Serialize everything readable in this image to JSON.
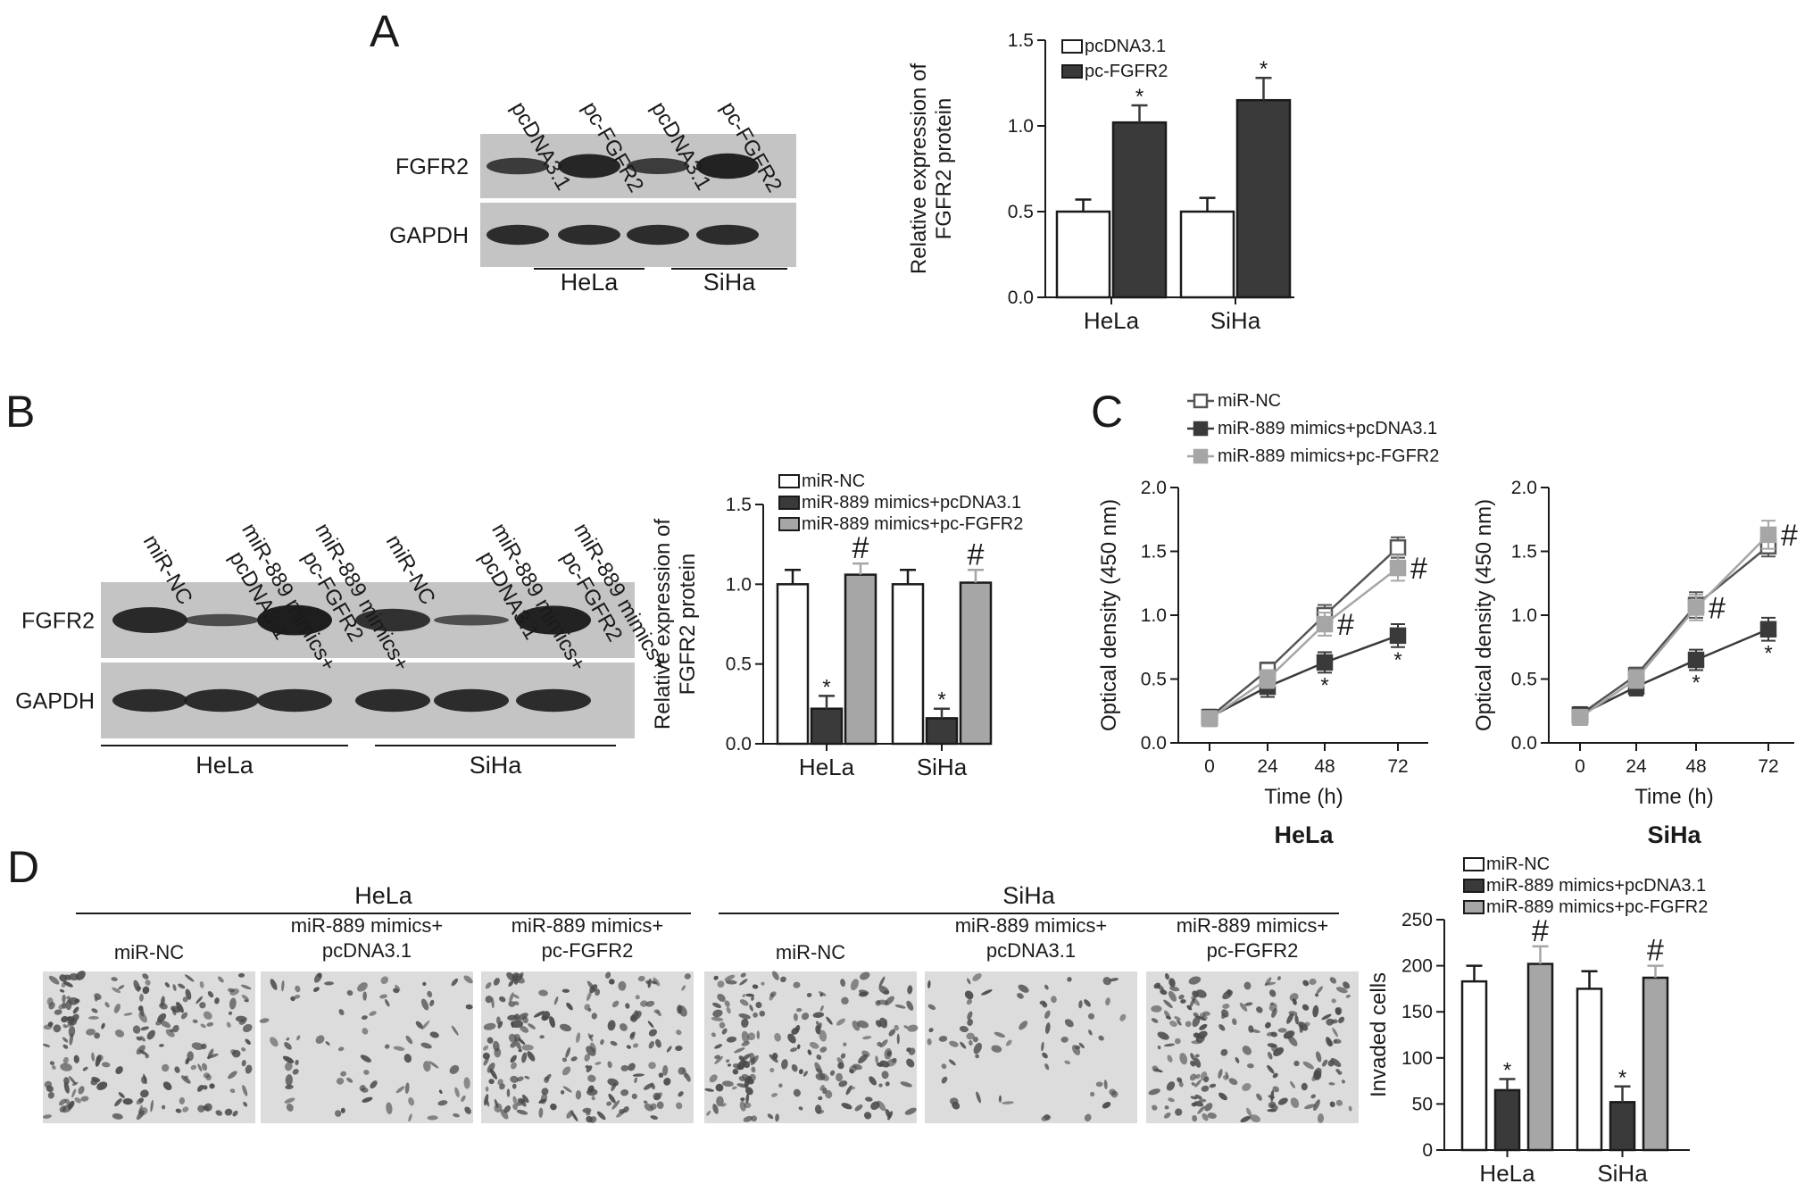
{
  "figure": {
    "panels": [
      "A",
      "B",
      "C",
      "D"
    ],
    "panel_a": {
      "lane_labels": [
        "pcDNA3.1",
        "pc-FGFR2",
        "pcDNA3.1",
        "pc-FGFR2"
      ],
      "rows": [
        "FGFR2",
        "GAPDH"
      ],
      "cells": [
        "HeLa",
        "SiHa"
      ]
    },
    "panel_b": {
      "lane_labels": [
        [
          "miR-NC"
        ],
        [
          "miR-889 mimics+",
          "pcDNA3.1"
        ],
        [
          "miR-889 mimics+",
          "pc-FGFR2"
        ],
        [
          "miR-NC"
        ],
        [
          "miR-889 mimics+",
          "pcDNA3.1"
        ],
        [
          "miR-889 mimics+",
          "pc-FGFR2"
        ]
      ],
      "rows": [
        "FGFR2",
        "GAPDH"
      ],
      "cells": [
        "HeLa",
        "SiHa"
      ]
    },
    "panel_c": {
      "cells": [
        "HeLa",
        "SiHa"
      ]
    },
    "panel_d": {
      "groups": [
        "HeLa",
        "SiHa"
      ],
      "field_labels": [
        [
          "miR-NC"
        ],
        [
          "miR-889 mimics+",
          "pcDNA3.1"
        ],
        [
          "miR-889 mimics+",
          "pc-FGFR2"
        ],
        [
          "miR-NC"
        ],
        [
          "miR-889 mimics+",
          "pcDNA3.1"
        ],
        [
          "miR-889 mimics+",
          "pc-FGFR2"
        ]
      ]
    }
  },
  "colors": {
    "white_bar": "#ffffff",
    "dark_bar": "#3a3a3a",
    "gray_bar": "#a6a6a6",
    "axis": "#1a1a1a",
    "blot_bg": "#c4c4c4",
    "band": "#1e1e1e"
  },
  "chart_data": [
    {
      "id": "A-bar",
      "type": "bar",
      "ylabel": "Relative expression of FGFR2 protein",
      "xlabel": "",
      "ylim": [
        0,
        1.5
      ],
      "yticks": [
        0.0,
        0.5,
        1.0,
        1.5
      ],
      "tick_decimals": 1,
      "categories": [
        "HeLa",
        "SiHa"
      ],
      "legend": "top-left",
      "series": [
        {
          "name": "pcDNA3.1",
          "color": "#ffffff",
          "values": [
            0.5,
            0.5
          ],
          "errors": [
            0.07,
            0.08
          ],
          "marks": [
            "",
            ""
          ]
        },
        {
          "name": "pc-FGFR2",
          "color": "#3a3a3a",
          "values": [
            1.02,
            1.15
          ],
          "errors": [
            0.1,
            0.13
          ],
          "marks": [
            "*",
            "*"
          ]
        }
      ]
    },
    {
      "id": "B-bar",
      "type": "bar",
      "ylabel": "Relative expression of FGFR2 protein",
      "xlabel": "",
      "ylim": [
        0,
        1.5
      ],
      "yticks": [
        0.0,
        0.5,
        1.0,
        1.5
      ],
      "tick_decimals": 1,
      "categories": [
        "HeLa",
        "SiHa"
      ],
      "legend": "top-left",
      "series": [
        {
          "name": "miR-NC",
          "color": "#ffffff",
          "values": [
            1.0,
            1.0
          ],
          "errors": [
            0.09,
            0.09
          ],
          "marks": [
            "",
            ""
          ]
        },
        {
          "name": "miR-889 mimics+pcDNA3.1",
          "color": "#3a3a3a",
          "values": [
            0.22,
            0.16
          ],
          "errors": [
            0.08,
            0.06
          ],
          "marks": [
            "*",
            "*"
          ]
        },
        {
          "name": "miR-889 mimics+pc-FGFR2",
          "color": "#a6a6a6",
          "values": [
            1.06,
            1.01
          ],
          "errors": [
            0.07,
            0.08
          ],
          "marks": [
            "#",
            "#"
          ]
        }
      ]
    },
    {
      "id": "C-HeLa",
      "type": "line",
      "title": "HeLa",
      "ylabel": "Optical density (450 nm)",
      "xlabel": "Time (h)",
      "ylim": [
        0,
        2.0
      ],
      "yticks": [
        0.0,
        0.5,
        1.0,
        1.5,
        2.0
      ],
      "tick_decimals": 1,
      "x": [
        0,
        24,
        48,
        72
      ],
      "legend": "top",
      "series": [
        {
          "name": "miR-NC",
          "color": "#555555",
          "fill": "#ffffff",
          "values": [
            0.2,
            0.57,
            1.0,
            1.53
          ],
          "errors": [
            0.06,
            0.06,
            0.08,
            0.08
          ],
          "marks": [
            "",
            "",
            "",
            ""
          ]
        },
        {
          "name": "miR-889 mimics+pcDNA3.1",
          "color": "#3a3a3a",
          "fill": "#3a3a3a",
          "values": [
            0.2,
            0.44,
            0.63,
            0.84
          ],
          "errors": [
            0.06,
            0.08,
            0.08,
            0.09
          ],
          "marks": [
            "",
            "",
            "*",
            "*"
          ]
        },
        {
          "name": "miR-889 mimics+pc-FGFR2",
          "color": "#a6a6a6",
          "fill": "#a6a6a6",
          "values": [
            0.19,
            0.5,
            0.93,
            1.37
          ],
          "errors": [
            0.06,
            0.07,
            0.09,
            0.1
          ],
          "marks": [
            "",
            "",
            "#",
            "#"
          ]
        }
      ]
    },
    {
      "id": "C-SiHa",
      "type": "line",
      "title": "SiHa",
      "ylabel": "Optical density (450 nm)",
      "xlabel": "Time (h)",
      "ylim": [
        0,
        2.0
      ],
      "yticks": [
        0.0,
        0.5,
        1.0,
        1.5,
        2.0
      ],
      "tick_decimals": 1,
      "x": [
        0,
        24,
        48,
        72
      ],
      "series": [
        {
          "name": "miR-NC",
          "color": "#555555",
          "fill": "#ffffff",
          "values": [
            0.22,
            0.53,
            1.08,
            1.54
          ],
          "errors": [
            0.06,
            0.06,
            0.1,
            0.08
          ],
          "marks": [
            "",
            "",
            "",
            ""
          ]
        },
        {
          "name": "miR-889 mimics+pcDNA3.1",
          "color": "#3a3a3a",
          "fill": "#3a3a3a",
          "values": [
            0.22,
            0.44,
            0.65,
            0.89
          ],
          "errors": [
            0.06,
            0.07,
            0.08,
            0.09
          ],
          "marks": [
            "",
            "",
            "*",
            "*"
          ]
        },
        {
          "name": "miR-889 mimics+pc-FGFR2",
          "color": "#a6a6a6",
          "fill": "#a6a6a6",
          "values": [
            0.2,
            0.5,
            1.06,
            1.63
          ],
          "errors": [
            0.06,
            0.07,
            0.1,
            0.11
          ],
          "marks": [
            "",
            "",
            "#",
            "#"
          ]
        }
      ]
    },
    {
      "id": "D-bar",
      "type": "bar",
      "ylabel": "Invaded cells",
      "xlabel": "",
      "ylim": [
        0,
        250
      ],
      "yticks": [
        0,
        50,
        100,
        150,
        200,
        250
      ],
      "tick_decimals": 0,
      "categories": [
        "HeLa",
        "SiHa"
      ],
      "legend": "top-left",
      "series": [
        {
          "name": "miR-NC",
          "color": "#ffffff",
          "values": [
            183,
            175
          ],
          "errors": [
            17,
            19
          ],
          "marks": [
            "",
            ""
          ]
        },
        {
          "name": "miR-889 mimics+pcDNA3.1",
          "color": "#3a3a3a",
          "values": [
            65,
            52
          ],
          "errors": [
            12,
            17
          ],
          "marks": [
            "*",
            "*"
          ]
        },
        {
          "name": "miR-889 mimics+pc-FGFR2",
          "color": "#a6a6a6",
          "values": [
            202,
            187
          ],
          "errors": [
            19,
            13
          ],
          "marks": [
            "#",
            "#"
          ]
        }
      ]
    }
  ]
}
